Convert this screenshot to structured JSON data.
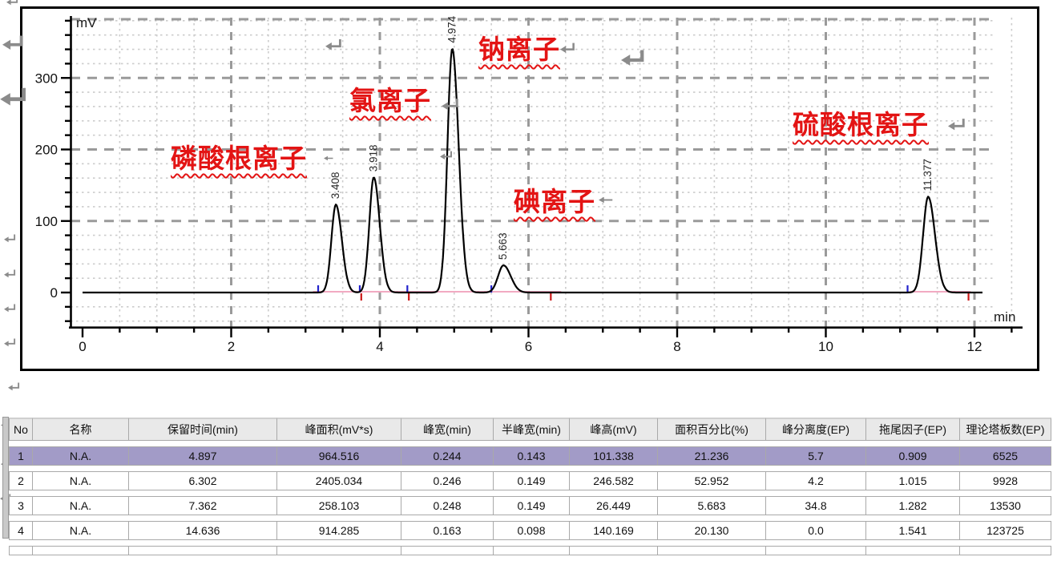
{
  "chart_data": {
    "type": "line",
    "title": "",
    "x_label": "min",
    "y_label": "mV",
    "x_ticks": [
      0,
      2,
      4,
      6,
      8,
      10,
      12
    ],
    "y_ticks": [
      0,
      100,
      200,
      300
    ],
    "x_range": [
      0,
      12.6
    ],
    "y_range": [
      -45,
      385
    ],
    "x_minor_step": 0.5,
    "y_minor_step": 20,
    "grid": "dashed",
    "legend_position": "none",
    "baseline_mv": 0,
    "trace_end_min": 12.12,
    "peaks": [
      {
        "rt": 3.408,
        "height_mv": 123,
        "label": "3.408",
        "ion": "磷酸根离子",
        "fwhm_min": 0.14
      },
      {
        "rt": 3.918,
        "height_mv": 161,
        "label": "3.918",
        "ion": "氯离子",
        "fwhm_min": 0.14
      },
      {
        "rt": 4.974,
        "height_mv": 341,
        "label": "4.974",
        "ion": "钠离子",
        "fwhm_min": 0.15
      },
      {
        "rt": 5.663,
        "height_mv": 38,
        "label": "5.663",
        "ion": "碘离子",
        "fwhm_min": 0.17
      },
      {
        "rt": 11.377,
        "height_mv": 134,
        "label": "11.377",
        "ion": "硫酸根离子",
        "fwhm_min": 0.16
      }
    ],
    "integration_start_marks_min": [
      3.17,
      3.73,
      4.37,
      5.5,
      11.1
    ],
    "integration_end_marks_min": [
      3.75,
      4.39,
      6.3,
      11.92
    ],
    "integration_baseline_segments_min": [
      [
        3.1,
        6.44
      ],
      [
        11.13,
        11.95
      ]
    ],
    "colors": {
      "trace": "#000000",
      "annotation_red": "#e31414",
      "grid_major": "#9a9a9a",
      "grid_minor": "#cccccc",
      "integration_baseline_pink": "#f2aac2",
      "start_mark_blue": "#2222cc",
      "end_mark_red": "#cc1818",
      "return_arrow_gray": "#8b8b8b",
      "highlight_row_purple": "#a29bc7"
    }
  },
  "table": {
    "headers": [
      "No",
      "名称",
      "保留时间(min)",
      "峰面积(mV*s)",
      "峰宽(min)",
      "半峰宽(min)",
      "峰高(mV)",
      "面积百分比(%)",
      "峰分离度(EP)",
      "拖尾因子(EP)",
      "理论塔板数(EP)"
    ],
    "rows": [
      [
        "1",
        "N.A.",
        "4.897",
        "964.516",
        "0.244",
        "0.143",
        "101.338",
        "21.236",
        "5.7",
        "0.909",
        "6525"
      ],
      [
        "2",
        "N.A.",
        "6.302",
        "2405.034",
        "0.246",
        "0.149",
        "246.582",
        "52.952",
        "4.2",
        "1.015",
        "9928"
      ],
      [
        "3",
        "N.A.",
        "7.362",
        "258.103",
        "0.248",
        "0.149",
        "26.449",
        "5.683",
        "34.8",
        "1.282",
        "13530"
      ],
      [
        "4",
        "N.A.",
        "14.636",
        "914.285",
        "0.163",
        "0.098",
        "140.169",
        "20.130",
        "0.0",
        "1.541",
        "123725"
      ]
    ],
    "highlighted_row_index": 0
  }
}
